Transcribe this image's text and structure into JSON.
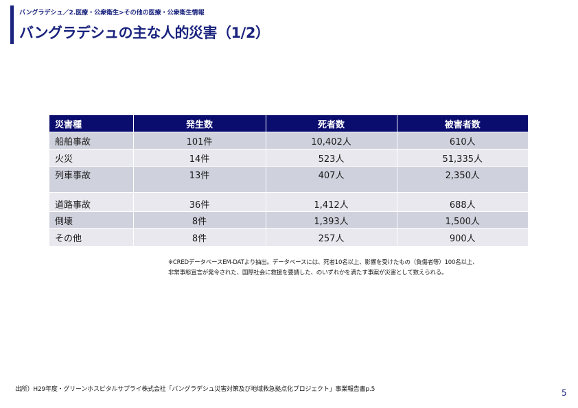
{
  "header": {
    "breadcrumb": "バングラデシュ／2.医療・公衆衛生>その他の医療・公衆衛生情報",
    "title": "バングラデシュの主な人的災害（1/2）"
  },
  "table": {
    "headers": [
      "災害種",
      "発生数",
      "死者数",
      "被害者数"
    ],
    "rows": [
      [
        "船舶事故",
        "101件",
        "10,402人",
        "610人"
      ],
      [
        "火災",
        "14件",
        "523人",
        "51,335人"
      ],
      [
        "列車事故",
        "13件",
        "407人",
        "2,350人"
      ],
      [
        "道路事故",
        "36件",
        "1,412人",
        "688人"
      ],
      [
        "倒壊",
        "8件",
        "1,393人",
        "1,500人"
      ],
      [
        "その他",
        "8件",
        "257人",
        "900人"
      ]
    ]
  },
  "note": {
    "line1": "※CREDデータベースEM-DATより抽出。データベースには、死者10名以上、影響を受けたもの（負傷者等）100名以上、",
    "line2": "非常事態宣言が発令された、国際社会に救援を要請した、のいずれかを満たす事案が災害として数えられる。"
  },
  "footer": {
    "source": "出所）H29年度・グリーンホスピタルサプライ株式会社「バングラデシュ災害対策及び地域救急拠点化プロジェクト」事業報告書p.5",
    "page_number": "5"
  },
  "colors": {
    "accent": "#1a237e",
    "table_header": "#0b0d6e",
    "row_dark": "#cfd1dc",
    "row_light": "#e8e8ee"
  }
}
